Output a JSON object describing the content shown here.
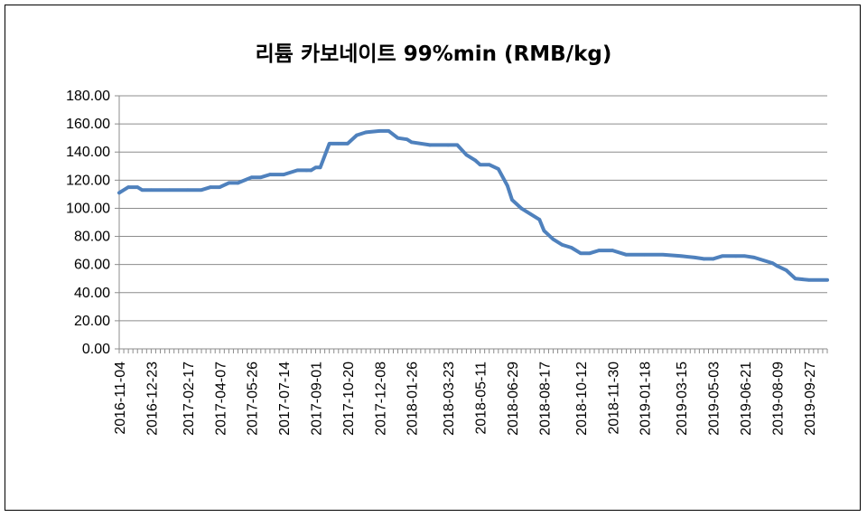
{
  "chart_data": {
    "type": "line",
    "title": "리튬 카보네이트 99%min (RMB/kg)",
    "xlabel": "",
    "ylabel": "",
    "ylim": [
      0,
      180
    ],
    "y_ticks": [
      "0.00",
      "20.00",
      "40.00",
      "60.00",
      "80.00",
      "100.00",
      "120.00",
      "140.00",
      "160.00",
      "180.00"
    ],
    "y_tick_values": [
      0,
      20,
      40,
      60,
      80,
      100,
      120,
      140,
      160,
      180
    ],
    "x_tick_labels": [
      "2016-11-04",
      "2016-12-23",
      "2017-02-17",
      "2017-04-07",
      "2017-05-26",
      "2017-07-14",
      "2017-09-01",
      "2017-10-20",
      "2017-12-08",
      "2018-01-26",
      "2018-03-23",
      "2018-05-11",
      "2018-06-29",
      "2018-08-17",
      "2018-10-12",
      "2018-11-30",
      "2019-01-18",
      "2019-03-15",
      "2019-05-03",
      "2019-06-21",
      "2019-08-09",
      "2019-09-27"
    ],
    "x_range": [
      "2016-11-04",
      "2019-10-25"
    ],
    "grid": true,
    "legend": "none",
    "series": [
      {
        "color": "#4f81bd",
        "x": [
          "2016-11-04",
          "2016-11-18",
          "2016-12-02",
          "2016-12-09",
          "2016-12-23",
          "2017-01-20",
          "2017-02-17",
          "2017-03-10",
          "2017-03-24",
          "2017-04-07",
          "2017-04-21",
          "2017-05-05",
          "2017-05-26",
          "2017-06-09",
          "2017-06-23",
          "2017-07-14",
          "2017-08-04",
          "2017-08-18",
          "2017-08-25",
          "2017-09-01",
          "2017-09-08",
          "2017-09-22",
          "2017-10-06",
          "2017-10-20",
          "2017-11-03",
          "2017-11-17",
          "2017-12-08",
          "2017-12-22",
          "2018-01-05",
          "2018-01-19",
          "2018-01-26",
          "2018-02-23",
          "2018-03-23",
          "2018-04-06",
          "2018-04-20",
          "2018-05-04",
          "2018-05-11",
          "2018-05-25",
          "2018-06-08",
          "2018-06-22",
          "2018-06-29",
          "2018-07-13",
          "2018-07-27",
          "2018-08-10",
          "2018-08-17",
          "2018-08-31",
          "2018-09-14",
          "2018-09-28",
          "2018-10-12",
          "2018-10-26",
          "2018-11-09",
          "2018-11-30",
          "2018-12-21",
          "2019-01-18",
          "2019-02-15",
          "2019-03-15",
          "2019-04-05",
          "2019-04-19",
          "2019-05-03",
          "2019-05-17",
          "2019-06-07",
          "2019-06-21",
          "2019-07-05",
          "2019-07-19",
          "2019-08-02",
          "2019-08-09",
          "2019-08-23",
          "2019-09-06",
          "2019-09-27",
          "2019-10-25"
        ],
        "y": [
          111,
          115,
          115,
          113,
          113,
          113,
          113,
          113,
          115,
          115,
          118,
          118,
          122,
          122,
          124,
          124,
          127,
          127,
          127,
          129,
          129,
          146,
          146,
          146,
          152,
          154,
          155,
          155,
          150,
          149,
          147,
          145,
          145,
          145,
          138,
          134,
          131,
          131,
          128,
          116,
          106,
          100,
          96,
          92,
          84,
          78,
          74,
          72,
          68,
          68,
          70,
          70,
          67,
          67,
          67,
          66,
          65,
          64,
          64,
          66,
          66,
          66,
          65,
          63,
          61,
          59,
          56,
          50,
          49,
          49
        ]
      }
    ]
  }
}
